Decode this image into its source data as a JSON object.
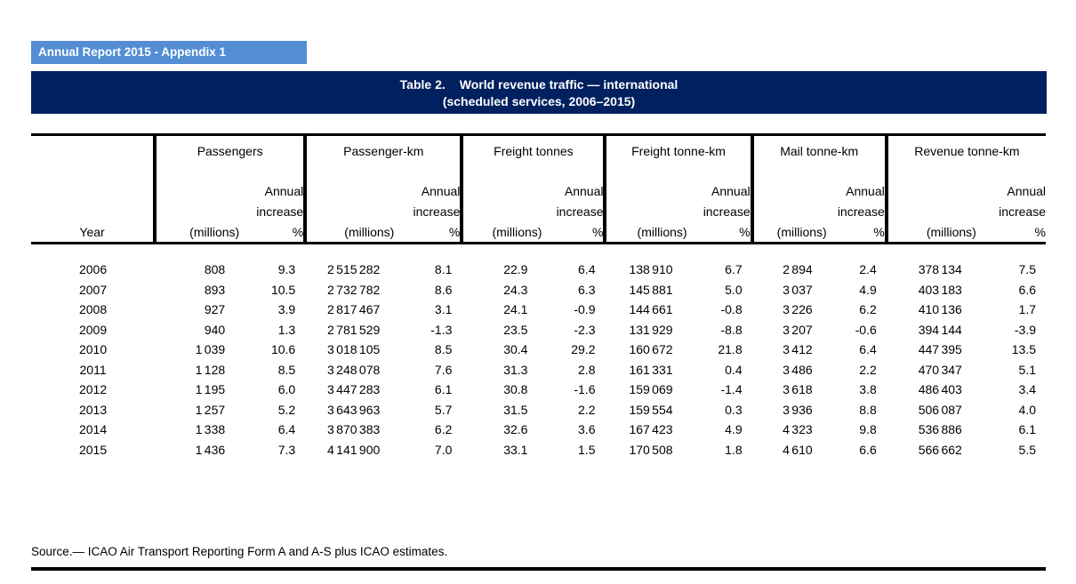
{
  "page": {
    "badge": "Annual Report 2015 - Appendix 1",
    "title_label": "Table 2.",
    "title_text": "World revenue traffic — international",
    "subtitle": "(scheduled services, 2006–2015)",
    "source": "Source.— ICAO Air Transport Reporting Form A and A-S plus ICAO estimates."
  },
  "colors": {
    "badge_bg": "#548DD4",
    "title_bg": "#002060",
    "line": "#000000"
  },
  "table": {
    "year_header": "Year",
    "sub_millions": "(millions)",
    "sub_annual": "Annual",
    "sub_increase": "increase",
    "sub_percent": "%",
    "groups": [
      {
        "label": "Passengers"
      },
      {
        "label": "Passenger-km"
      },
      {
        "label": "Freight tonnes"
      },
      {
        "label": "Freight tonne-km"
      },
      {
        "label": "Mail tonne-km"
      },
      {
        "label": "Revenue tonne-km"
      }
    ],
    "rows": [
      {
        "year": "2006",
        "values": [
          "808",
          "9.3",
          "2 515 282",
          "8.1",
          "22.9",
          "6.4",
          "138 910",
          "6.7",
          "2 894",
          "2.4",
          "378 134",
          "7.5"
        ]
      },
      {
        "year": "2007",
        "values": [
          "893",
          "10.5",
          "2 732 782",
          "8.6",
          "24.3",
          "6.3",
          "145 881",
          "5.0",
          "3 037",
          "4.9",
          "403 183",
          "6.6"
        ]
      },
      {
        "year": "2008",
        "values": [
          "927",
          "3.9",
          "2 817 467",
          "3.1",
          "24.1",
          "-0.9",
          "144 661",
          "-0.8",
          "3 226",
          "6.2",
          "410 136",
          "1.7"
        ]
      },
      {
        "year": "2009",
        "values": [
          "940",
          "1.3",
          "2 781 529",
          "-1.3",
          "23.5",
          "-2.3",
          "131 929",
          "-8.8",
          "3 207",
          "-0.6",
          "394 144",
          "-3.9"
        ]
      },
      {
        "year": "2010",
        "values": [
          "1 039",
          "10.6",
          "3 018 105",
          "8.5",
          "30.4",
          "29.2",
          "160 672",
          "21.8",
          "3 412",
          "6.4",
          "447 395",
          "13.5"
        ]
      },
      {
        "year": "2011",
        "values": [
          "1 128",
          "8.5",
          "3 248 078",
          "7.6",
          "31.3",
          "2.8",
          "161 331",
          "0.4",
          "3 486",
          "2.2",
          "470 347",
          "5.1"
        ]
      },
      {
        "year": "2012",
        "values": [
          "1 195",
          "6.0",
          "3 447 283",
          "6.1",
          "30.8",
          "-1.6",
          "159 069",
          "-1.4",
          "3 618",
          "3.8",
          "486 403",
          "3.4"
        ]
      },
      {
        "year": "2013",
        "values": [
          "1 257",
          "5.2",
          "3 643 963",
          "5.7",
          "31.5",
          "2.2",
          "159 554",
          "0.3",
          "3 936",
          "8.8",
          "506 087",
          "4.0"
        ]
      },
      {
        "year": "2014",
        "values": [
          "1 338",
          "6.4",
          "3 870 383",
          "6.2",
          "32.6",
          "3.6",
          "167 423",
          "4.9",
          "4 323",
          "9.8",
          "536 886",
          "6.1"
        ]
      },
      {
        "year": "2015",
        "values": [
          "1 436",
          "7.3",
          "4 141 900",
          "7.0",
          "33.1",
          "1.5",
          "170 508",
          "1.8",
          "4 610",
          "6.6",
          "566 662",
          "5.5"
        ]
      }
    ]
  }
}
